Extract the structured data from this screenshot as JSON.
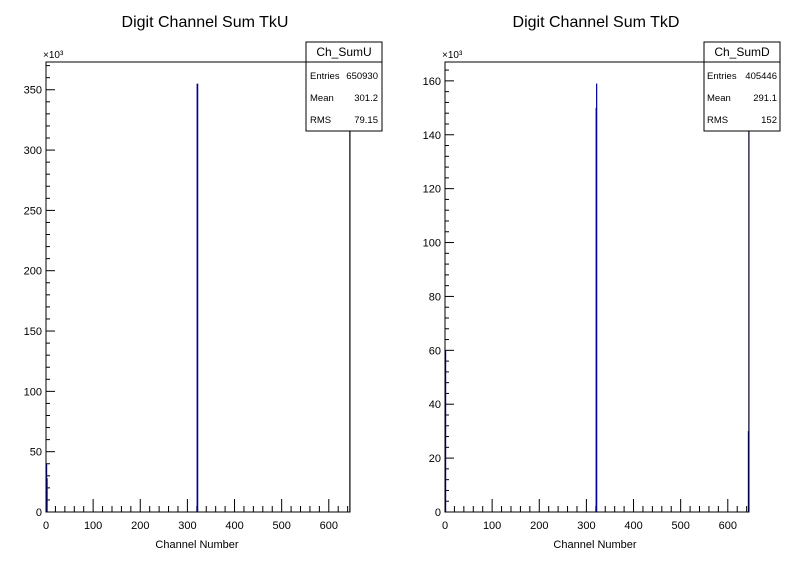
{
  "chart_data": [
    {
      "type": "bar",
      "title": "Digit Channel Sum TkU",
      "xlabel": "Channel Number",
      "ylabel": "",
      "y_multiplier": "×10³",
      "xlim": [
        0,
        645
      ],
      "ylim": [
        0,
        373
      ],
      "x_ticks": [
        "0",
        "100",
        "200",
        "300",
        "400",
        "500",
        "600"
      ],
      "y_ticks": [
        "0",
        "50",
        "100",
        "150",
        "200",
        "250",
        "300",
        "350"
      ],
      "bars": [
        {
          "x": 0.5,
          "value": 40
        },
        {
          "x": 1.5,
          "value": 28
        },
        {
          "x": 320.0,
          "value": 355
        },
        {
          "x": 321.0,
          "value": 355
        },
        {
          "x": 644.0,
          "value": 373
        }
      ],
      "bar_color": "#000099",
      "stats": {
        "name": "Ch_SumU",
        "rows": [
          {
            "label": "Entries",
            "value": "650930"
          },
          {
            "label": "Mean",
            "value": "301.2"
          },
          {
            "label": "RMS",
            "value": "79.15"
          }
        ]
      }
    },
    {
      "type": "bar",
      "title": "Digit Channel Sum TkD",
      "xlabel": "Channel Number",
      "ylabel": "",
      "y_multiplier": "×10³",
      "xlim": [
        0,
        645
      ],
      "ylim": [
        0,
        167
      ],
      "x_ticks": [
        "0",
        "100",
        "200",
        "300",
        "400",
        "500",
        "600"
      ],
      "y_ticks": [
        "0",
        "20",
        "40",
        "60",
        "80",
        "100",
        "120",
        "140",
        "160"
      ],
      "bars": [
        {
          "x": 0.5,
          "value": 60
        },
        {
          "x": 320.0,
          "value": 150
        },
        {
          "x": 321.0,
          "value": 159
        },
        {
          "x": 643.0,
          "value": 30
        },
        {
          "x": 644.0,
          "value": 167
        }
      ],
      "bar_color": "#000099",
      "stats": {
        "name": "Ch_SumD",
        "rows": [
          {
            "label": "Entries",
            "value": "405446"
          },
          {
            "label": "Mean",
            "value": "291.1"
          },
          {
            "label": "RMS",
            "value": "152"
          }
        ]
      }
    }
  ]
}
